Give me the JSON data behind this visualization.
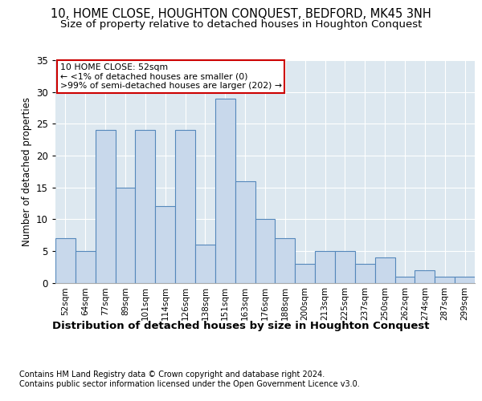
{
  "title": "10, HOME CLOSE, HOUGHTON CONQUEST, BEDFORD, MK45 3NH",
  "subtitle": "Size of property relative to detached houses in Houghton Conquest",
  "xlabel": "Distribution of detached houses by size in Houghton Conquest",
  "ylabel": "Number of detached properties",
  "bar_color": "#c8d8eb",
  "bar_edge_color": "#5588bb",
  "background_color": "#dde8f0",
  "categories": [
    "52sqm",
    "64sqm",
    "77sqm",
    "89sqm",
    "101sqm",
    "114sqm",
    "126sqm",
    "138sqm",
    "151sqm",
    "163sqm",
    "176sqm",
    "188sqm",
    "200sqm",
    "213sqm",
    "225sqm",
    "237sqm",
    "250sqm",
    "262sqm",
    "274sqm",
    "287sqm",
    "299sqm"
  ],
  "values": [
    7,
    5,
    24,
    15,
    24,
    12,
    24,
    6,
    29,
    16,
    10,
    7,
    3,
    5,
    5,
    3,
    4,
    1,
    2,
    1,
    1
  ],
  "ylim": [
    0,
    35
  ],
  "yticks": [
    0,
    5,
    10,
    15,
    20,
    25,
    30,
    35
  ],
  "annotation_box_text": [
    "10 HOME CLOSE: 52sqm",
    "← <1% of detached houses are smaller (0)",
    ">99% of semi-detached houses are larger (202) →"
  ],
  "annotation_box_color": "white",
  "annotation_box_edge_color": "#cc0000",
  "footer_line1": "Contains HM Land Registry data © Crown copyright and database right 2024.",
  "footer_line2": "Contains public sector information licensed under the Open Government Licence v3.0.",
  "grid_color": "#ffffff",
  "title_fontsize": 10.5,
  "subtitle_fontsize": 9.5,
  "xlabel_fontsize": 9.5,
  "tick_fontsize": 7.5,
  "ylabel_fontsize": 8.5,
  "footer_fontsize": 7,
  "ann_fontsize": 7.8
}
